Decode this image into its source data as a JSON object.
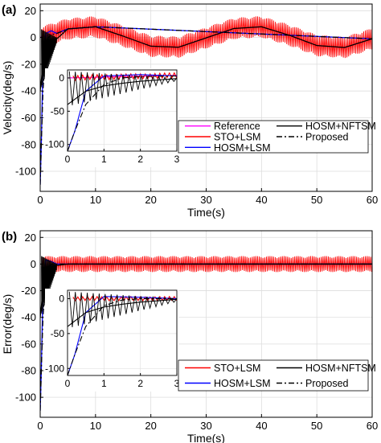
{
  "chart_data": [
    {
      "type": "line",
      "panel_label": "(a)",
      "xlabel": "Time(s)",
      "ylabel": "Velocity(deg/s)",
      "xlim": [
        0,
        60
      ],
      "ylim": [
        -115,
        25
      ],
      "xticks": [
        "0",
        "10",
        "20",
        "30",
        "40",
        "50",
        "60"
      ],
      "yticks": [
        "20",
        "0",
        "-20",
        "-40",
        "-60",
        "-80",
        "-100"
      ],
      "grid": true,
      "legend_position": "bottom-right",
      "series": [
        {
          "name": "Reference",
          "color": "#ff00ff",
          "style": "solid",
          "x": [
            0,
            5,
            10,
            15,
            20,
            25,
            30,
            35,
            40,
            45,
            50,
            55,
            60
          ],
          "y": [
            0,
            6.4,
            8.0,
            1.0,
            -6.5,
            -7.3,
            -0.3,
            6.7,
            8.0,
            1.7,
            -6.0,
            -7.5,
            -1.0
          ]
        },
        {
          "name": "STO+LSM",
          "color": "#ff0000",
          "style": "solid",
          "chatter_amplitude": 8,
          "x": [
            0,
            5,
            10,
            15,
            20,
            25,
            30,
            35,
            40,
            45,
            50,
            55,
            60
          ],
          "y": [
            0,
            6.4,
            8.0,
            1.0,
            -6.5,
            -7.3,
            -0.3,
            6.7,
            8.0,
            1.7,
            -6.0,
            -7.5,
            -1.0
          ]
        },
        {
          "name": "HOSM+LSM",
          "color": "#0000ff",
          "style": "solid",
          "x": [
            0,
            0.2,
            0.5,
            1.0,
            2.0,
            3.0,
            5.0,
            10.0,
            60
          ],
          "y": [
            -110,
            -80,
            -20,
            3,
            5,
            3,
            6.4,
            8.0,
            -1.0
          ]
        },
        {
          "name": "HOSM+NFTSM",
          "color": "#000000",
          "style": "solid",
          "x": [
            0,
            0.5,
            1.0,
            1.5,
            2.0,
            2.5,
            3.0,
            5.0,
            10.0,
            15.0,
            20.0,
            25.0,
            30.0,
            35.0,
            40.0,
            45.0,
            50.0,
            55.0,
            60.0
          ],
          "y": [
            -40,
            -20,
            -12,
            -8,
            -5,
            -3,
            -1,
            6.4,
            8.0,
            1.0,
            -6.5,
            -7.3,
            -0.3,
            6.7,
            8.0,
            1.7,
            -6.0,
            -7.5,
            -1.0
          ]
        },
        {
          "name": "Proposed",
          "color": "#000000",
          "style": "dashdot",
          "x": [
            0,
            0.2,
            0.5,
            1.0,
            1.5,
            2.0,
            3.0,
            5.0,
            10.0,
            60
          ],
          "y": [
            -110,
            -80,
            -40,
            -10,
            0,
            2,
            3,
            6.4,
            8.0,
            -1.0
          ]
        }
      ],
      "inset": {
        "xlim": [
          0,
          3
        ],
        "ylim": [
          -110,
          12
        ],
        "xticks": [
          "0",
          "1",
          "2",
          "3"
        ],
        "yticks": [
          "0",
          "-50",
          "-100"
        ]
      }
    },
    {
      "type": "line",
      "panel_label": "(b)",
      "xlabel": "Time(s)",
      "ylabel": "Error(deg/s)",
      "xlim": [
        0,
        60
      ],
      "ylim": [
        -115,
        25
      ],
      "xticks": [
        "0",
        "10",
        "20",
        "30",
        "40",
        "50",
        "60"
      ],
      "yticks": [
        "20",
        "0",
        "-20",
        "-40",
        "-60",
        "-80",
        "-100"
      ],
      "grid": true,
      "legend_position": "bottom-right",
      "series": [
        {
          "name": "STO+LSM",
          "color": "#ff0000",
          "style": "solid",
          "chatter_amplitude": 6,
          "x": [
            0,
            60
          ],
          "y": [
            0,
            0
          ]
        },
        {
          "name": "HOSM+LSM",
          "color": "#0000ff",
          "style": "solid",
          "x": [
            0,
            0.2,
            0.5,
            1.0,
            2.0,
            3.0,
            60
          ],
          "y": [
            -110,
            -80,
            -20,
            3,
            2,
            0,
            0
          ]
        },
        {
          "name": "HOSM+NFTSM",
          "color": "#000000",
          "style": "solid",
          "x": [
            0,
            0.5,
            1.0,
            1.5,
            2.0,
            2.5,
            3.0,
            5.0,
            60
          ],
          "y": [
            -40,
            -20,
            -12,
            -8,
            -5,
            -3,
            -1,
            0,
            0
          ]
        },
        {
          "name": "Proposed",
          "color": "#000000",
          "style": "dashdot",
          "x": [
            0,
            0.2,
            0.5,
            1.0,
            1.5,
            2.0,
            3.0,
            60
          ],
          "y": [
            -110,
            -80,
            -40,
            -10,
            -2,
            0,
            0,
            0
          ]
        }
      ],
      "inset": {
        "xlim": [
          0,
          3
        ],
        "ylim": [
          -110,
          12
        ],
        "xticks": [
          "0",
          "1",
          "2",
          "3"
        ],
        "yticks": [
          "0",
          "-50",
          "-100"
        ]
      }
    }
  ]
}
